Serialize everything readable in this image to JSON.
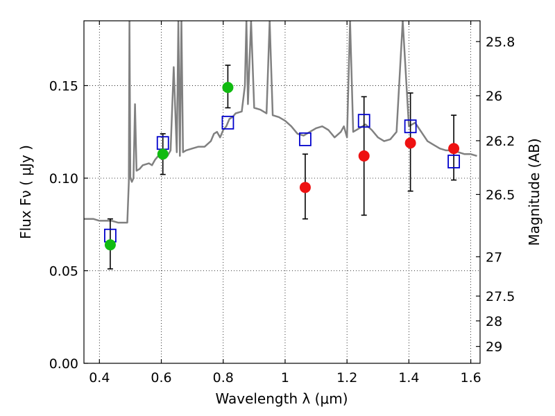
{
  "chart_data": {
    "type": "scatter",
    "xlabel": "Wavelength  λ (μm)",
    "ylabel": "Flux  Fν  ( μJy )",
    "ylabel_right": "Magnitude (AB)",
    "xlim": [
      0.35,
      1.63
    ],
    "ylim": [
      0.0,
      0.185
    ],
    "x_ticks": [
      {
        "value": 0.4,
        "label": "0.4"
      },
      {
        "value": 0.6,
        "label": "0.6"
      },
      {
        "value": 0.8,
        "label": "0.8"
      },
      {
        "value": 1.0,
        "label": "1"
      },
      {
        "value": 1.2,
        "label": "1.2"
      },
      {
        "value": 1.4,
        "label": "1.4"
      },
      {
        "value": 1.6,
        "label": "1.6"
      }
    ],
    "y_ticks": [
      {
        "value": 0.0,
        "label": "0.00"
      },
      {
        "value": 0.05,
        "label": "0.05"
      },
      {
        "value": 0.1,
        "label": "0.10"
      },
      {
        "value": 0.15,
        "label": "0.15"
      }
    ],
    "mag_ticks": [
      {
        "value": 25.8,
        "label": "25.8"
      },
      {
        "value": 26.0,
        "label": "26"
      },
      {
        "value": 26.2,
        "label": "26.2"
      },
      {
        "value": 26.5,
        "label": "26.5"
      },
      {
        "value": 27.0,
        "label": "27"
      },
      {
        "value": 27.5,
        "label": "27.5"
      },
      {
        "value": 28.0,
        "label": "28"
      },
      {
        "value": 29.0,
        "label": "29"
      }
    ],
    "grid": true,
    "colors": {
      "spectrum": "#808080",
      "detection": "#11bb11",
      "upper": "#ee1111",
      "model": "#0000cc",
      "errorbar": "#000000"
    },
    "model_flux": {
      "x": [
        0.435,
        0.605,
        0.815,
        1.065,
        1.255,
        1.405,
        1.545
      ],
      "y": [
        0.069,
        0.119,
        0.13,
        0.121,
        0.131,
        0.128,
        0.109
      ]
    },
    "observed": [
      {
        "x": 0.435,
        "y": 0.064,
        "err_low": 0.051,
        "err_high": 0.078,
        "kind": "detection"
      },
      {
        "x": 0.605,
        "y": 0.113,
        "err_low": 0.102,
        "err_high": 0.124,
        "kind": "detection"
      },
      {
        "x": 0.815,
        "y": 0.149,
        "err_low": 0.138,
        "err_high": 0.161,
        "kind": "detection"
      },
      {
        "x": 1.065,
        "y": 0.095,
        "err_low": 0.078,
        "err_high": 0.113,
        "kind": "upper"
      },
      {
        "x": 1.255,
        "y": 0.112,
        "err_low": 0.08,
        "err_high": 0.144,
        "kind": "upper"
      },
      {
        "x": 1.405,
        "y": 0.119,
        "err_low": 0.093,
        "err_high": 0.146,
        "kind": "upper"
      },
      {
        "x": 1.545,
        "y": 0.116,
        "err_low": 0.099,
        "err_high": 0.134,
        "kind": "upper"
      }
    ],
    "spectrum": {
      "x": [
        0.35,
        0.36,
        0.38,
        0.4,
        0.42,
        0.44,
        0.46,
        0.48,
        0.49,
        0.495,
        0.497,
        0.5,
        0.505,
        0.51,
        0.515,
        0.52,
        0.53,
        0.54,
        0.56,
        0.57,
        0.58,
        0.59,
        0.6,
        0.61,
        0.62,
        0.63,
        0.64,
        0.65,
        0.655,
        0.66,
        0.665,
        0.67,
        0.68,
        0.7,
        0.72,
        0.74,
        0.76,
        0.77,
        0.78,
        0.79,
        0.8,
        0.81,
        0.82,
        0.83,
        0.84,
        0.86,
        0.87,
        0.875,
        0.88,
        0.89,
        0.9,
        0.92,
        0.94,
        0.95,
        0.96,
        0.98,
        1.0,
        1.02,
        1.04,
        1.06,
        1.08,
        1.1,
        1.12,
        1.14,
        1.16,
        1.18,
        1.19,
        1.2,
        1.21,
        1.22,
        1.24,
        1.26,
        1.28,
        1.3,
        1.32,
        1.34,
        1.36,
        1.38,
        1.4,
        1.42,
        1.44,
        1.46,
        1.48,
        1.5,
        1.52,
        1.54,
        1.56,
        1.58,
        1.6,
        1.62
      ],
      "y": [
        0.078,
        0.078,
        0.078,
        0.077,
        0.077,
        0.077,
        0.076,
        0.076,
        0.076,
        0.098,
        0.185,
        0.1,
        0.098,
        0.1,
        0.14,
        0.104,
        0.105,
        0.107,
        0.108,
        0.107,
        0.11,
        0.112,
        0.114,
        0.115,
        0.112,
        0.115,
        0.16,
        0.114,
        0.185,
        0.112,
        0.185,
        0.114,
        0.115,
        0.116,
        0.117,
        0.117,
        0.12,
        0.124,
        0.125,
        0.122,
        0.126,
        0.128,
        0.132,
        0.133,
        0.135,
        0.136,
        0.15,
        0.185,
        0.14,
        0.185,
        0.138,
        0.137,
        0.135,
        0.185,
        0.134,
        0.133,
        0.131,
        0.128,
        0.124,
        0.123,
        0.125,
        0.127,
        0.128,
        0.126,
        0.122,
        0.125,
        0.128,
        0.122,
        0.185,
        0.125,
        0.127,
        0.129,
        0.126,
        0.122,
        0.12,
        0.121,
        0.125,
        0.185,
        0.128,
        0.13,
        0.125,
        0.12,
        0.118,
        0.116,
        0.115,
        0.115,
        0.114,
        0.113,
        0.113,
        0.112
      ]
    }
  }
}
